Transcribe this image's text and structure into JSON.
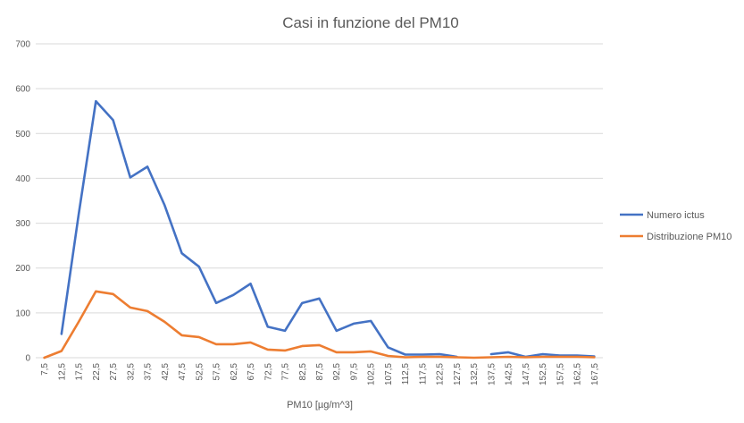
{
  "chart_data": {
    "type": "line",
    "title": "Casi in funzione del PM10",
    "xlabel": "PM10 [µg/m^3]",
    "ylabel": "",
    "ylim": [
      0,
      700
    ],
    "yticks": [
      0,
      100,
      200,
      300,
      400,
      500,
      600,
      700
    ],
    "grid": true,
    "legend_position": "right",
    "categories": [
      "7,5",
      "12,5",
      "17,5",
      "22,5",
      "27,5",
      "32,5",
      "37,5",
      "42,5",
      "47,5",
      "52,5",
      "57,5",
      "62,5",
      "67,5",
      "72,5",
      "77,5",
      "82,5",
      "87,5",
      "92,5",
      "97,5",
      "102,5",
      "107,5",
      "112,5",
      "117,5",
      "122,5",
      "127,5",
      "132,5",
      "137,5",
      "142,5",
      "147,5",
      "152,5",
      "157,5",
      "162,5",
      "167,5"
    ],
    "series": [
      {
        "name": "Numero ictus",
        "color": "#4472c4",
        "values": [
          null,
          53,
          320,
          572,
          530,
          402,
          426,
          340,
          233,
          203,
          122,
          140,
          165,
          69,
          60,
          122,
          132,
          60,
          76,
          82,
          23,
          7,
          7,
          8,
          2,
          null,
          8,
          12,
          2,
          8,
          5,
          5,
          3
        ]
      },
      {
        "name": "Distribuzione PM10",
        "color": "#ed7d31",
        "values": [
          0,
          15,
          80,
          148,
          142,
          112,
          104,
          80,
          50,
          46,
          30,
          30,
          34,
          18,
          16,
          26,
          28,
          12,
          12,
          14,
          4,
          1,
          2,
          2,
          1,
          0,
          1,
          2,
          1,
          2,
          2,
          2,
          1
        ]
      }
    ]
  }
}
